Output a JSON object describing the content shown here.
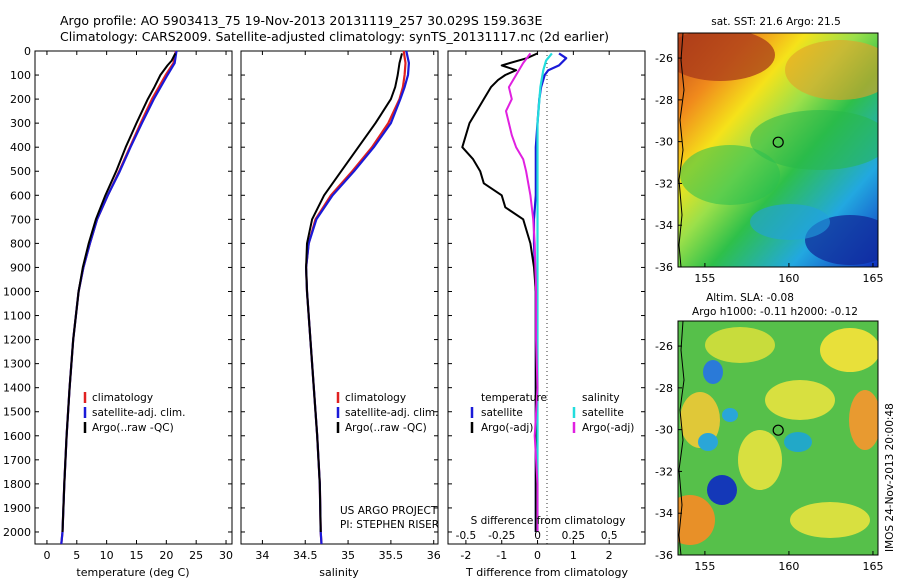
{
  "header": {
    "line1": "Argo profile: AO 5903413_75 19-Nov-2013 20131119_257 30.029S 159.363E",
    "line2": "Climatology: CARS2009. Satellite-adjusted climatology: synTS_20131117.nc (2d earlier)"
  },
  "colors": {
    "climatology": "#e02020",
    "satellite": "#1a1ad8",
    "argo": "#000000",
    "sat_salinity": "#22dddd",
    "argo_salinity": "#e020e0"
  },
  "chart_data": [
    {
      "id": "temperature",
      "type": "line",
      "xlabel": "temperature (deg C)",
      "xlim": [
        -2,
        31
      ],
      "xticks": [
        0,
        5,
        10,
        15,
        20,
        25,
        30
      ],
      "xtick_labels": [
        "0",
        "5",
        "10",
        "15",
        "20",
        "25",
        "30"
      ],
      "ylim": [
        0,
        2050
      ],
      "yticks": [
        0,
        100,
        200,
        300,
        400,
        500,
        600,
        700,
        800,
        900,
        1000,
        1100,
        1200,
        1300,
        1400,
        1500,
        1600,
        1700,
        1800,
        1900,
        2000
      ],
      "ytick_labels": [
        "0",
        "100",
        "200",
        "300",
        "400",
        "500",
        "600",
        "700",
        "800",
        "900",
        "1000",
        "1100",
        "1200",
        "1300",
        "1400",
        "1500",
        "1600",
        "1700",
        "1800",
        "1900",
        "2000"
      ],
      "legend": [
        "climatology",
        "satellite-adj. clim.",
        "Argo(..raw -QC)"
      ],
      "legend_location": "center-right",
      "series": [
        {
          "name": "climatology",
          "color_key": "climatology",
          "depth": [
            0,
            50,
            100,
            200,
            300,
            400,
            500,
            600,
            700,
            800,
            900,
            1000,
            1200,
            1400,
            1600,
            1800,
            2000,
            2050
          ],
          "values": [
            21.6,
            21.2,
            19.9,
            17.6,
            15.7,
            13.9,
            12.1,
            10.2,
            8.4,
            7.2,
            6.1,
            5.3,
            4.4,
            3.8,
            3.3,
            2.9,
            2.6,
            2.4
          ]
        },
        {
          "name": "satellite-adj. clim.",
          "color_key": "satellite",
          "depth": [
            0,
            50,
            100,
            200,
            300,
            400,
            500,
            600,
            700,
            800,
            900,
            1000,
            1200,
            1400,
            1600,
            1800,
            2000,
            2050
          ],
          "values": [
            21.7,
            21.4,
            20.2,
            17.9,
            15.9,
            14.0,
            12.2,
            10.2,
            8.4,
            7.2,
            6.1,
            5.3,
            4.4,
            3.8,
            3.3,
            2.9,
            2.6,
            2.4
          ]
        },
        {
          "name": "Argo(..raw -QC)",
          "color_key": "argo",
          "depth": [
            10,
            40,
            60,
            100,
            150,
            200,
            300,
            400,
            500,
            600,
            700,
            800,
            900,
            1000,
            1200,
            1400,
            1600,
            1800,
            2000
          ],
          "values": [
            21.5,
            20.9,
            20.2,
            19.0,
            18.0,
            16.9,
            15.0,
            13.2,
            11.6,
            9.8,
            8.2,
            7.0,
            6.0,
            5.3,
            4.4,
            3.8,
            3.3,
            2.9,
            2.6
          ]
        }
      ]
    },
    {
      "id": "salinity",
      "type": "line",
      "xlabel": "salinity",
      "xlim": [
        33.75,
        36.05
      ],
      "xticks": [
        34,
        34.5,
        35,
        35.5,
        36
      ],
      "xtick_labels": [
        "34",
        "34.5",
        "35",
        "35.5",
        "36"
      ],
      "ylim": [
        0,
        2050
      ],
      "legend": [
        "climatology",
        "satellite-adj. clim.",
        "Argo(..raw -QC)"
      ],
      "legend_location": "center-right",
      "annotation": [
        "US ARGO PROJECT",
        "PI: STEPHEN RISER"
      ],
      "series": [
        {
          "name": "climatology",
          "color_key": "climatology",
          "depth": [
            0,
            50,
            100,
            150,
            200,
            300,
            400,
            500,
            600,
            700,
            800,
            900,
            1000,
            1200,
            1400,
            1600,
            1800,
            2000,
            2050
          ],
          "values": [
            35.65,
            35.67,
            35.66,
            35.64,
            35.6,
            35.47,
            35.28,
            35.05,
            34.8,
            34.62,
            34.54,
            34.51,
            34.52,
            34.56,
            34.6,
            34.64,
            34.67,
            34.68,
            34.69
          ]
        },
        {
          "name": "satellite-adj. clim.",
          "color_key": "satellite",
          "depth": [
            0,
            50,
            100,
            150,
            200,
            300,
            400,
            500,
            600,
            700,
            800,
            900,
            1000,
            1200,
            1400,
            1600,
            1800,
            2000,
            2050
          ],
          "values": [
            35.68,
            35.71,
            35.7,
            35.66,
            35.61,
            35.5,
            35.3,
            35.07,
            34.82,
            34.63,
            34.54,
            34.51,
            34.52,
            34.56,
            34.6,
            34.64,
            34.67,
            34.68,
            34.69
          ]
        },
        {
          "name": "Argo(..raw -QC)",
          "color_key": "argo",
          "depth": [
            10,
            50,
            100,
            150,
            200,
            300,
            400,
            500,
            600,
            700,
            800,
            900,
            1000,
            1200,
            1400,
            1600,
            1800,
            2000
          ],
          "values": [
            35.63,
            35.6,
            35.58,
            35.55,
            35.5,
            35.32,
            35.12,
            34.92,
            34.72,
            34.58,
            34.52,
            34.51,
            34.52,
            34.56,
            34.6,
            34.64,
            34.67,
            34.68
          ]
        }
      ]
    },
    {
      "id": "differences",
      "type": "line",
      "xlabel": "T difference from climatology",
      "xlabel_top": "S difference from climatology",
      "xlim": [
        -2.5,
        3.0
      ],
      "xticks": [
        -2,
        -1,
        0,
        1,
        2
      ],
      "xtick_labels": [
        "-2",
        "-1",
        "0",
        "1",
        "2"
      ],
      "s_ticks": [
        -0.5,
        -0.25,
        0,
        0.25,
        0.5
      ],
      "s_tick_labels": [
        "-0.5",
        "-0.25",
        "0",
        "0.25",
        "0.5"
      ],
      "ylim": [
        0,
        2050
      ],
      "legend_left": {
        "title": "temperature",
        "items": [
          "satellite",
          "Argo(-adj)"
        ]
      },
      "legend_right": {
        "title": "salinity",
        "items": [
          "satellite",
          "Argo(-adj)"
        ]
      },
      "series": [
        {
          "name": "T satellite",
          "color_key": "satellite",
          "depth": [
            10,
            30,
            60,
            80,
            100,
            150,
            200,
            300,
            400,
            500,
            600,
            700,
            800,
            1000,
            1200,
            1400,
            1600,
            1800,
            2000
          ],
          "values": [
            0.6,
            0.8,
            0.6,
            0.3,
            0.2,
            0.1,
            0.05,
            0.0,
            -0.05,
            -0.05,
            -0.05,
            -0.1,
            -0.1,
            -0.05,
            -0.05,
            -0.05,
            -0.05,
            -0.05,
            -0.05
          ]
        },
        {
          "name": "T Argo(-adj)",
          "color_key": "argo",
          "depth": [
            10,
            30,
            60,
            80,
            100,
            120,
            150,
            200,
            250,
            300,
            350,
            400,
            450,
            500,
            550,
            600,
            650,
            700,
            750,
            800,
            900,
            1000,
            1100,
            1200,
            1400,
            1600,
            1800,
            2000
          ],
          "values": [
            0.0,
            -0.3,
            -1.0,
            -0.6,
            -0.9,
            -1.1,
            -1.3,
            -1.5,
            -1.7,
            -1.9,
            -2.0,
            -2.1,
            -1.8,
            -1.6,
            -1.5,
            -1.0,
            -0.9,
            -0.4,
            -0.3,
            -0.2,
            -0.1,
            -0.05,
            -0.05,
            -0.05,
            -0.05,
            -0.05,
            -0.05,
            -0.05
          ]
        },
        {
          "name": "S satellite",
          "color_key": "sat_salinity",
          "depth": [
            10,
            40,
            80,
            150,
            300,
            500,
            800,
            1000,
            1500,
            2000
          ],
          "values": [
            0.1,
            0.06,
            0.04,
            0.02,
            0.0,
            0.0,
            0.0,
            0.0,
            0.0,
            0.0
          ]
        },
        {
          "name": "S Argo(-adj)",
          "color_key": "argo_salinity",
          "depth": [
            10,
            50,
            100,
            150,
            200,
            250,
            300,
            350,
            400,
            450,
            500,
            600,
            700,
            800,
            1000,
            1200,
            1400,
            1600,
            1800,
            2000
          ],
          "values": [
            -0.05,
            -0.1,
            -0.15,
            -0.2,
            -0.18,
            -0.22,
            -0.2,
            -0.18,
            -0.15,
            -0.1,
            -0.08,
            -0.05,
            -0.03,
            -0.02,
            -0.01,
            -0.01,
            0.0,
            -0.02,
            0.0,
            0.0
          ]
        }
      ]
    }
  ],
  "maps": {
    "sst": {
      "title": "sat. SST: 21.6 Argo: 21.5",
      "lon_ticks": [
        "155",
        "160",
        "165"
      ],
      "lat_ticks": [
        "-26",
        "-28",
        "-30",
        "-32",
        "-34",
        "-36"
      ],
      "float_lon": 159.363,
      "float_lat": -30.029
    },
    "sla": {
      "title1": "Altim. SLA: -0.08",
      "title2": "Argo h1000: -0.11 h2000: -0.12",
      "lon_ticks": [
        "155",
        "160",
        "165"
      ],
      "lat_ticks": [
        "-26",
        "-28",
        "-30",
        "-32",
        "-34",
        "-36"
      ],
      "float_lon": 159.363,
      "float_lat": -30.029,
      "credit": "IMOS 24-Nov-2013 20:00:48"
    }
  }
}
